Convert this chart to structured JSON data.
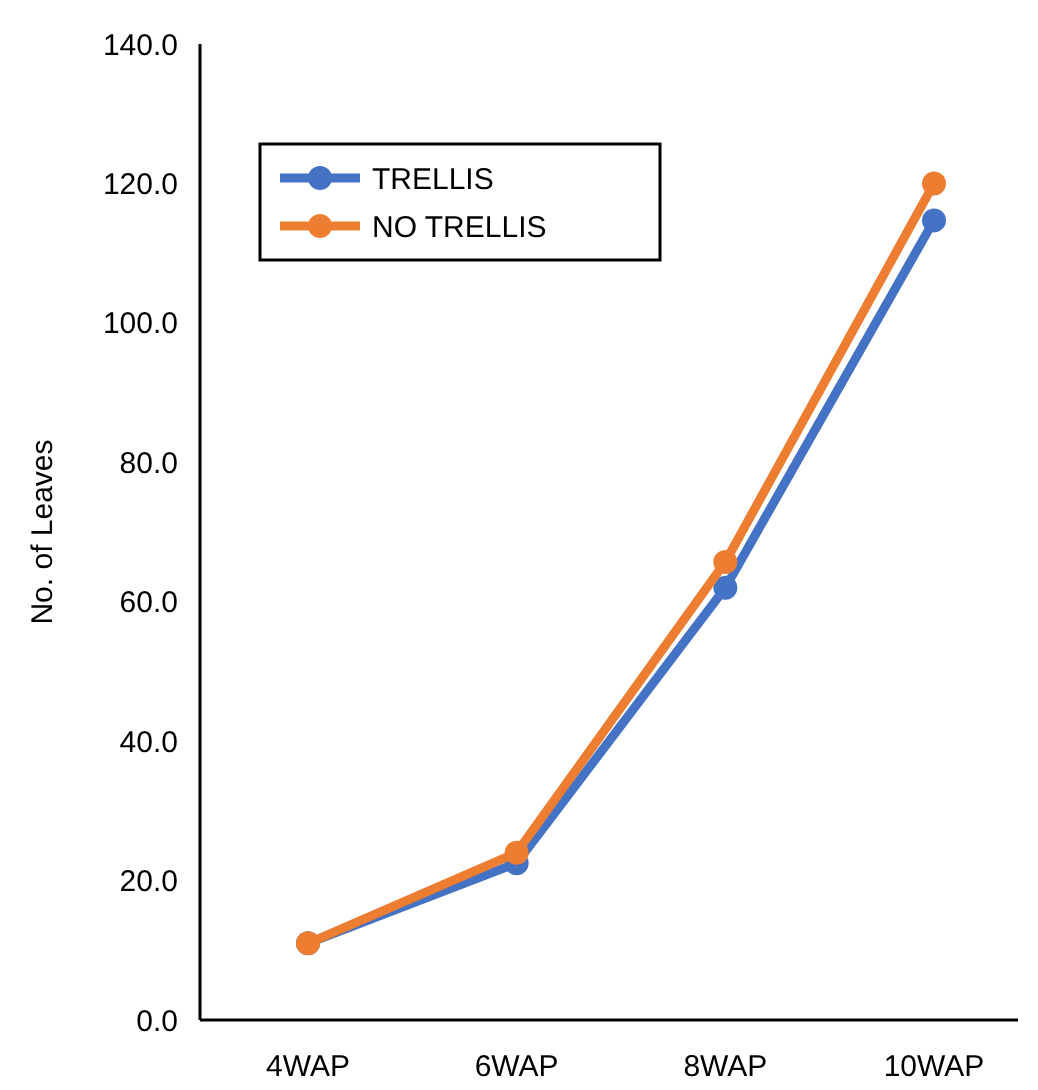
{
  "chart_data": {
    "type": "line",
    "ylabel": "No. of Leaves",
    "categories": [
      "4WAP",
      "6WAP",
      "8WAP",
      "10WAP"
    ],
    "series": [
      {
        "name": "TRELLIS",
        "color": "#4472c4",
        "values": [
          11,
          22.5,
          62,
          114.7
        ]
      },
      {
        "name": "NO TRELLIS",
        "color": "#ed7d31",
        "values": [
          11,
          24,
          65.7,
          120
        ]
      }
    ],
    "ylim": [
      0,
      140
    ],
    "yticks": [
      {
        "value": 0,
        "label": "0.0"
      },
      {
        "value": 20,
        "label": "20.0"
      },
      {
        "value": 40,
        "label": "40.0"
      },
      {
        "value": 60,
        "label": "60.0"
      },
      {
        "value": 80,
        "label": "80.0"
      },
      {
        "value": 100,
        "label": "100.0"
      },
      {
        "value": 120,
        "label": "120.0"
      },
      {
        "value": 140,
        "label": "140.0"
      }
    ],
    "grid": false,
    "legend": "top left",
    "marker": "circle",
    "line_style": "solid"
  }
}
